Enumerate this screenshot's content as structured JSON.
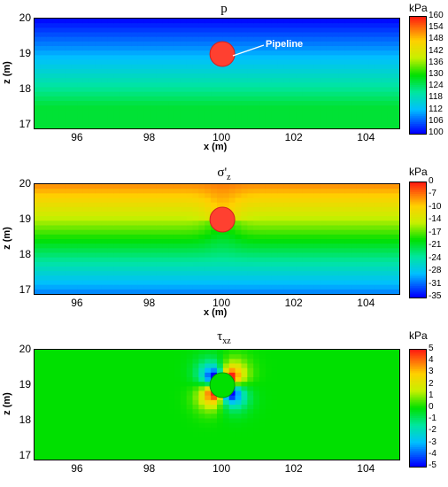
{
  "chart_data": [
    {
      "type": "heatmap",
      "title": "p",
      "xlabel": "x (m)",
      "ylabel": "z (m)",
      "xlim": [
        94.8,
        104.9
      ],
      "ylim": [
        16.9,
        20
      ],
      "x_ticks": [
        "96",
        "98",
        "100",
        "102",
        "104"
      ],
      "y_ticks": [
        "20",
        "19",
        "18",
        "17"
      ],
      "colorbar": {
        "unit": "kPa",
        "min": 100,
        "max": 160,
        "ticks": [
          "160",
          "154",
          "148",
          "142",
          "136",
          "130",
          "124",
          "118",
          "112",
          "106",
          "100"
        ]
      },
      "pipeline": {
        "x": 100,
        "z": 19,
        "radius": 0.3
      },
      "annotation": "Pipeline"
    },
    {
      "type": "heatmap",
      "title": "σ'",
      "title_sub": "z",
      "xlabel": "x (m)",
      "ylabel": "z (m)",
      "xlim": [
        94.8,
        104.9
      ],
      "ylim": [
        16.9,
        20
      ],
      "x_ticks": [
        "96",
        "98",
        "100",
        "102",
        "104"
      ],
      "y_ticks": [
        "20",
        "19",
        "18",
        "17"
      ],
      "colorbar": {
        "unit": "kPa",
        "min": -35,
        "max": 0,
        "ticks": [
          "0",
          "-7",
          "-10",
          "-14",
          "-17",
          "-21",
          "-24",
          "-28",
          "-31",
          "-35"
        ]
      },
      "pipeline": {
        "x": 100,
        "z": 19,
        "radius": 0.3
      }
    },
    {
      "type": "heatmap",
      "title": "τ",
      "title_sub": "xz",
      "xlabel": "",
      "ylabel": "z (m)",
      "xlim": [
        94.8,
        104.9
      ],
      "ylim": [
        16.9,
        20
      ],
      "x_ticks": [
        "96",
        "98",
        "100",
        "102",
        "104"
      ],
      "y_ticks": [
        "20",
        "19",
        "18",
        "17"
      ],
      "colorbar": {
        "unit": "kPa",
        "min": -5,
        "max": 5,
        "ticks": [
          "5",
          "4",
          "3",
          "2",
          "1",
          "0",
          "-1",
          "-2",
          "-3",
          "-4",
          "-5"
        ]
      },
      "pipeline": {
        "x": 100,
        "z": 19,
        "radius": 0.3
      }
    }
  ]
}
